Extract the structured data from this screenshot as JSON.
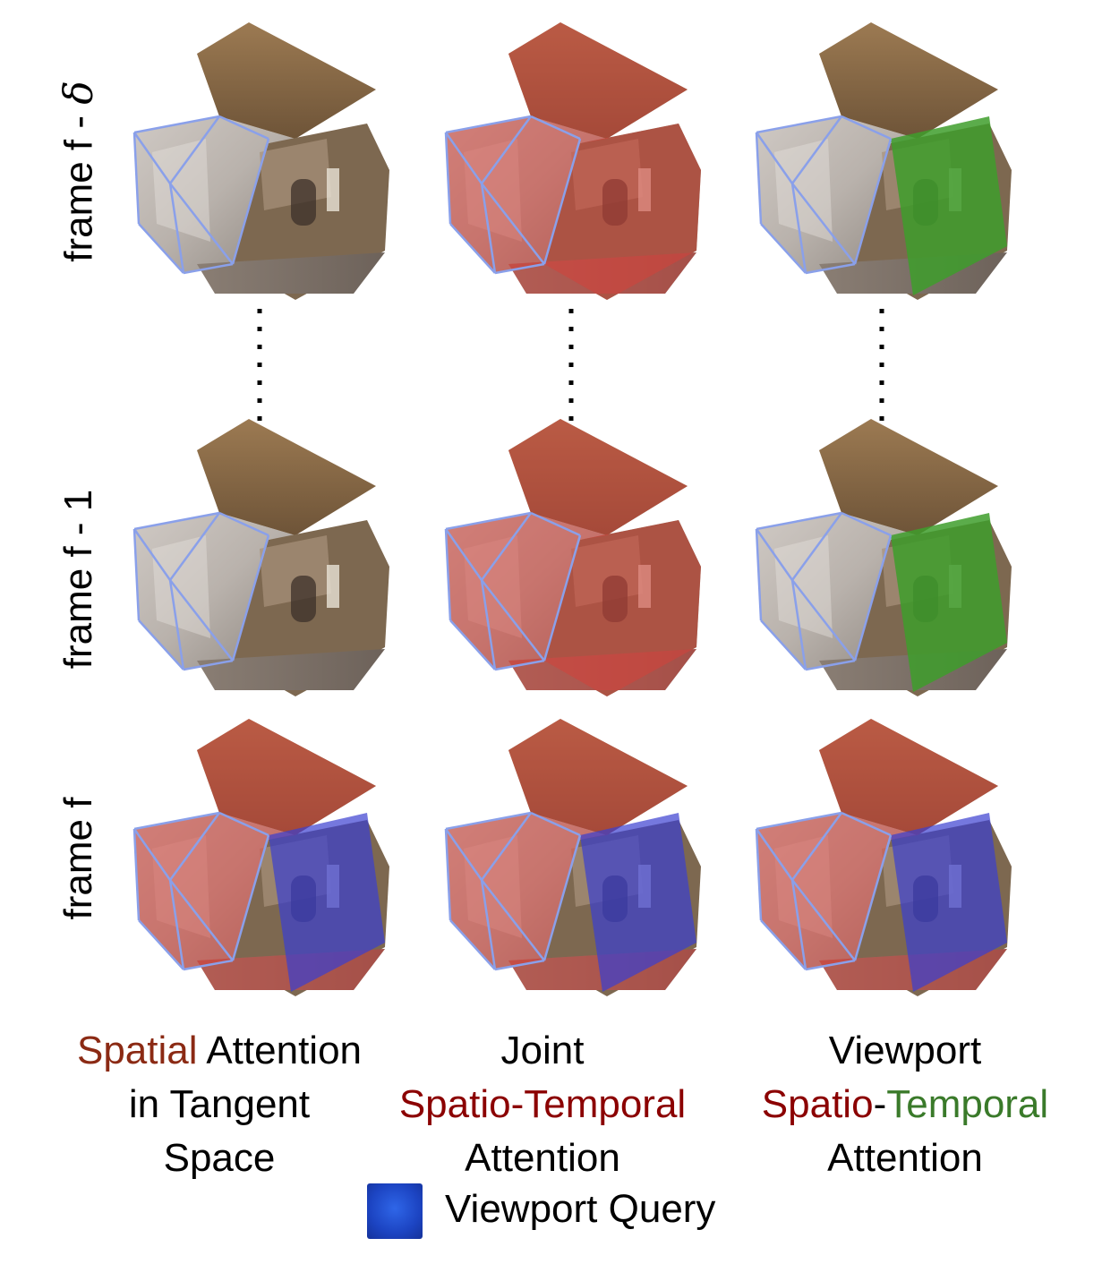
{
  "rows": [
    {
      "label_prefix": "frame f - ",
      "label_symbol": "δ"
    },
    {
      "label_prefix": "frame f - 1",
      "label_symbol": ""
    },
    {
      "label_prefix": "frame f",
      "label_symbol": ""
    }
  ],
  "columns": [
    {
      "caption": [
        [
          {
            "text": "Spatial",
            "color": "brown"
          },
          {
            "text": " Attention",
            "color": "black"
          }
        ],
        [
          {
            "text": "in Tangent",
            "color": "black"
          }
        ],
        [
          {
            "text": "Space",
            "color": "black"
          }
        ]
      ]
    },
    {
      "caption": [
        [
          {
            "text": "Joint",
            "color": "black"
          }
        ],
        [
          {
            "text": "Spatio-Temporal",
            "color": "red"
          }
        ],
        [
          {
            "text": "Attention",
            "color": "black"
          }
        ]
      ]
    },
    {
      "caption": [
        [
          {
            "text": "Viewport",
            "color": "black"
          }
        ],
        [
          {
            "text": "Spatio",
            "color": "red"
          },
          {
            "text": "-",
            "color": "black"
          },
          {
            "text": "Temporal",
            "color": "green"
          }
        ],
        [
          {
            "text": "Attention",
            "color": "black"
          }
        ]
      ]
    }
  ],
  "highlights": [
    [
      "none",
      "red",
      "green"
    ],
    [
      "none",
      "red",
      "green"
    ],
    [
      "red-blue",
      "red-blue",
      "red-blue"
    ]
  ],
  "colors": {
    "attention_red": "#d4413a",
    "viewport_green": "#3e9e2c",
    "query_blue": "#3a3fd0",
    "edge_blue": "#8aa0ea",
    "caption_red": "#8b0000",
    "caption_brown": "#8b2a14",
    "caption_green": "#3a7a2a"
  },
  "legend": {
    "label": "Viewport Query",
    "icon": "blue-square-icon"
  }
}
